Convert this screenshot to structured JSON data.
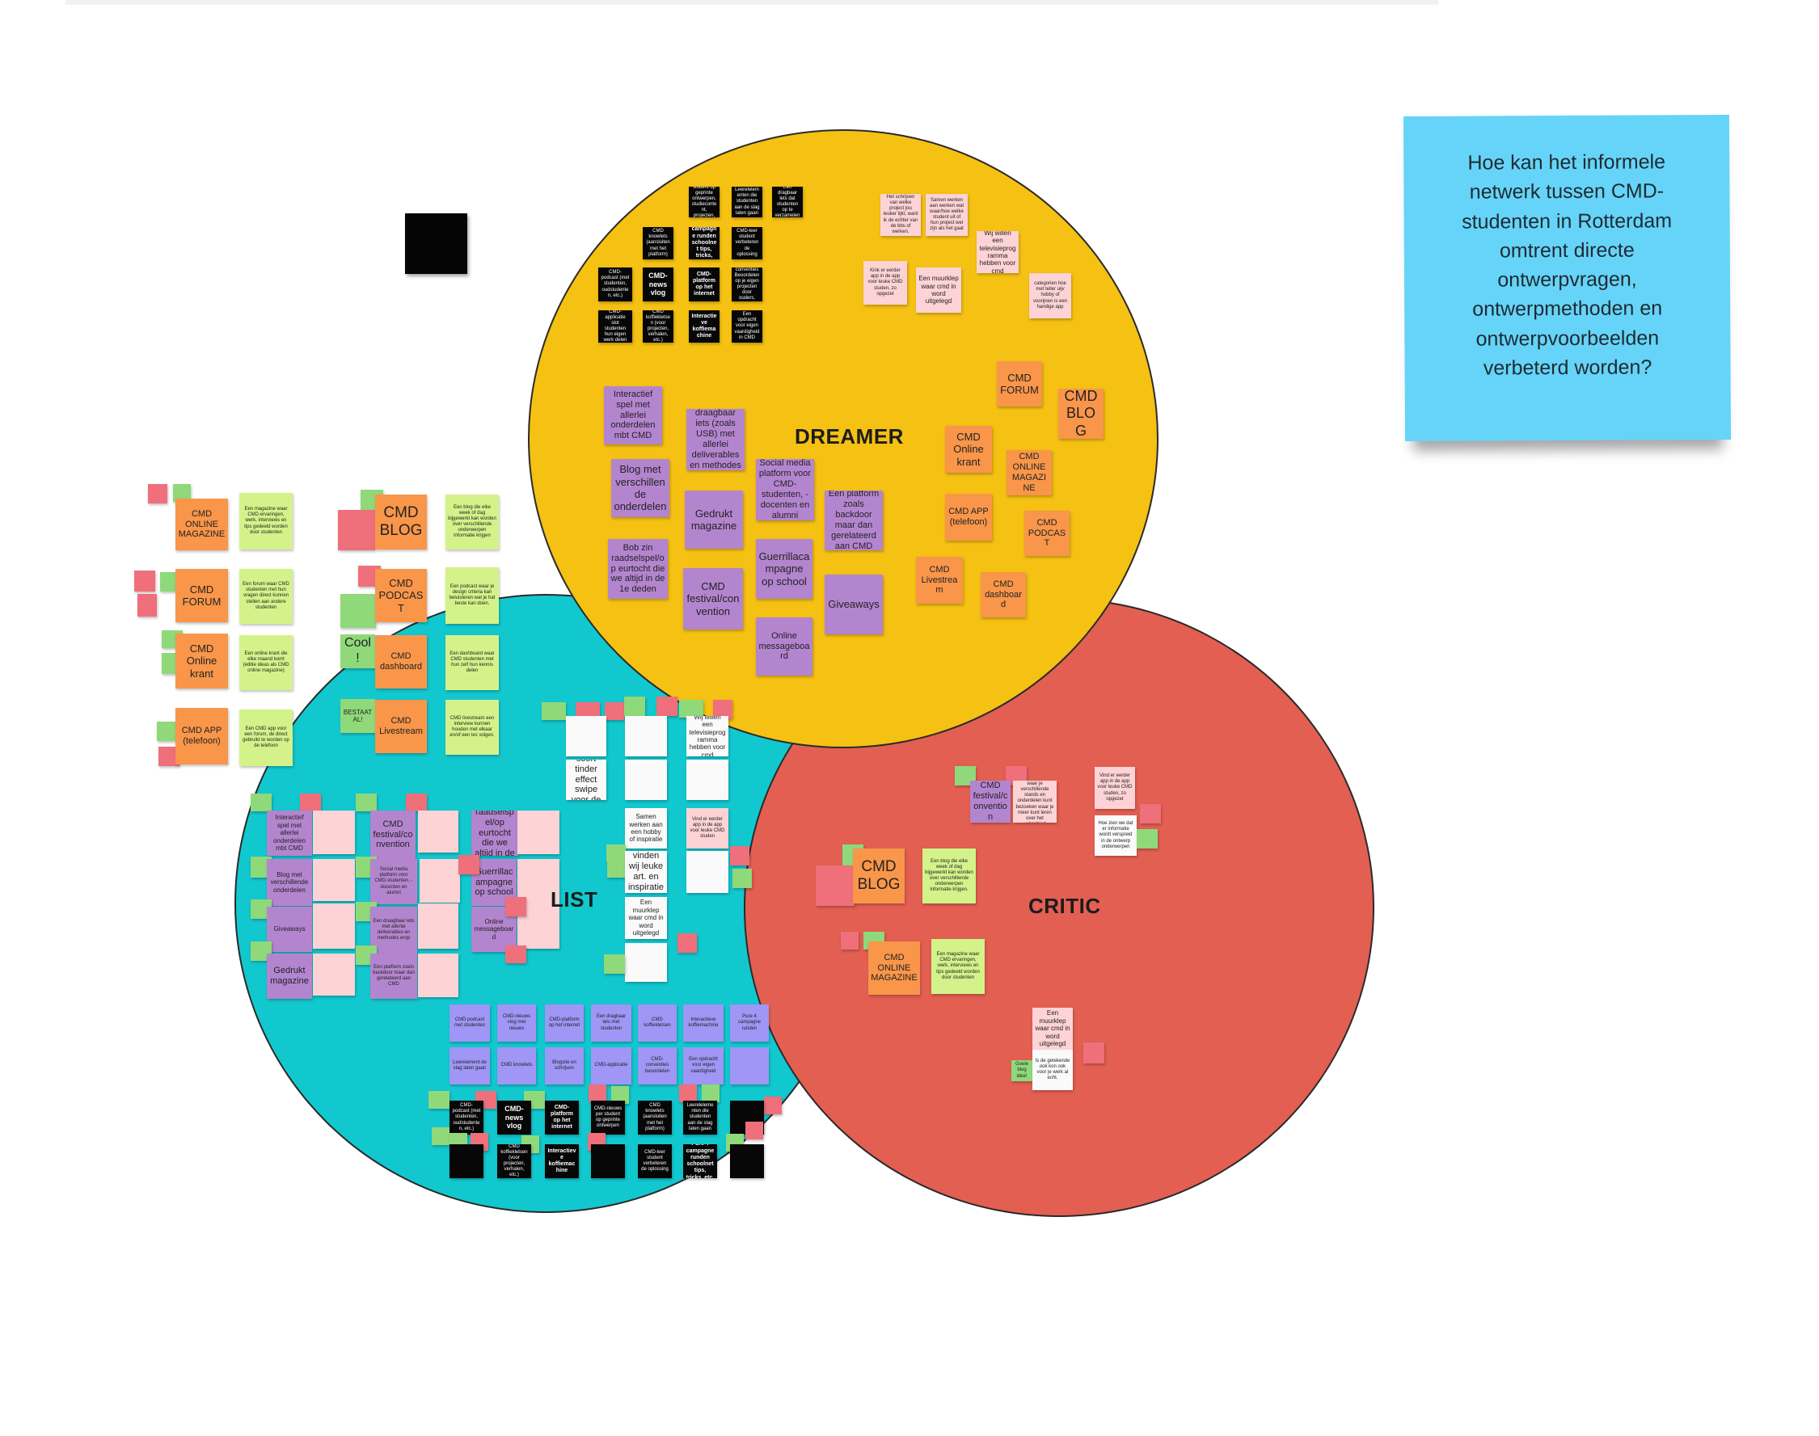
{
  "board": {
    "question": "Hoe kan het informele netwerk tussen CMD-studenten in Rotterdam omtrent directe ontwerpvragen, ontwerpmethoden en ontwerpvoorbeelden verbeterd worden?",
    "labels": {
      "dreamer": "DREAMER",
      "realist": "LIST",
      "critic": "CRITIC"
    }
  },
  "colors": {
    "dreamer": "#f5c112",
    "realist": "#12c8cf",
    "critic": "#e35f52",
    "question": "#65d4f8"
  },
  "dreamer": {
    "black_notes": [
      "CMD-nieuws per student op geprinte ontwerpen, studiecontent, projecten, bedrijven, etc.",
      "Leerelelementen die studenten aan de slag laten gaan",
      "Een dragbaar lets dat studenten op te verzamelen",
      "CMD knowlets (aansluiten met het platform)",
      "Pure 4 campagne runden schoolnet tips, tricks, etc.",
      "CMD-leer student verbeteren de oplossing",
      "CMD-podcast (met studenten, oudstudenten, etc.)",
      "CMD-news vlog",
      "CMD-platform op het internet",
      "CMD-conventies Beoordelen op je eigen projecten door ouders, studenten",
      "CMD-applicatie slot studenten hun eigen werk delen",
      "CMD koffiekletsen (voor projecten, verhalen, etc.)",
      "Interactieve koffiemachine",
      "Een opdracht voor eigen vaardigheid in CMD"
    ],
    "pink_notes": [
      "Het schrijven van welke project jou leuker lijkt, want ik de echter van de bbs of werken.",
      "Samen werken aan werken wat waar/hoe welke student uit of hun project wel zijn als het gaat",
      "Wij willen een televisieprogramma hebben voor cmd",
      "Kink er eerder app in de app voor leuke CMD studen, zo opgezet",
      "Een muurklep waar cmd in word uitgelegd",
      "categorien hoe met teller uijv hobby of voorijnen is een handige app"
    ],
    "purple_notes": [
      "Interactief spel met allerlei onderdelen mbt CMD",
      "Een draagbaar iets (zoals USB) met allerlei deliverables en methodes erop",
      "Social media platform voor CMD-studenten, -docenten en alumni",
      "Blog met verschillende onderdelen",
      "Gedrukt magazine",
      "Een platform zoals backdoor maar dan gerelateerd aan CMD",
      "Bob zin raadselspel/op eurtocht die we altijd in de 1e deden",
      "Guerrillacampagne op school",
      "CMD festival/convention",
      "Giveaways",
      "Online messageboard"
    ],
    "orange_notes": [
      "CMD FORUM",
      "CMD BLOG",
      "CMD Online krant",
      "CMD ONLINE MAGAZINE",
      "CMD APP (telefoon)",
      "CMD PODCAST",
      "CMD Livestream",
      "CMD dashboard"
    ]
  },
  "realist": {
    "orange_notes": [
      "CMD ONLINE MAGAZINE",
      "CMD BLOG",
      "CMD FORUM",
      "CMD PODCAST",
      "CMD Online krant",
      "CMD dashboard",
      "CMD APP (telefoon)",
      "CMD Livestream"
    ],
    "lime_notes": [
      "Een magazine waar CMD ervaringen, werk, interviews en tips gedeeld worden door studenten",
      "Een blog die elke week of dag bijgewerkt kan worden over verschillende onderwerpen informatie krijgen",
      "Een forum waar CMD studenten met hun vragen direct kunnen stellen aan andere studenten",
      "Een podcast waar je design criteria kan beluisteren wat je hat beste kan doen.",
      "Een online krant die elke maand komt (editie ideas als CMD online magazine)",
      "Een dashboard waar CMD studenten met hun zelf hun kennis delen",
      "Een CMD app voor een forum, de direct gebruikt te worden op de telefoon",
      "CMD livestream een interview kunnen houden met elkaar en/of een les volgen."
    ],
    "misc_notes": [
      "Cool!",
      "BESTAAT AL!"
    ],
    "purple_notes": [
      "Interactief spel met allerlei onderdelen mbt CMD",
      "CMD festival/convention",
      "Bob zin raadselspel/op eurtocht die we altijd in de 1e deden",
      "Blog met verschillende onderdelen",
      "Social media platform voor CMD-studenten, -docenten en alumni",
      "Een draagbaar iets (zoals USB) met allerlei deliverables",
      "Guerrillacampagne op school",
      "Giveaways",
      "Een draagbaar iets met allerlei deliverables en methodes erop",
      "Online messageboard",
      "Gedrukt magazine",
      "Een platform zoals backdoor maar dan gerelateerd aan CMD"
    ],
    "white_notes": [
      "Een soort tinder effect swipe voor de beste!",
      "Hoe vinden wij leuke art. en inspiratie?",
      "Een muurklep waar cmd in word uitgelegd",
      "Wij willen een televisieprogramma hebben voor cmd",
      "Samen werken aan een hobby of inspiratie",
      "Vind er eerder app in de app voor leuke CMD studen"
    ],
    "lavender_notes": [
      "CMD podcast met studenten",
      "CMD-nieuws vlog met nieuws",
      "CMD-platform op het internet",
      "Een dragbaar iets met studenten",
      "CMD koffiekletsen",
      "Interactieve koffiemachine",
      "Pure 4 campagne runden",
      "Leerelement de slag laten gaan",
      "CMD knowlets",
      "Blogsite en schrijven",
      "CMD-applicatie",
      "CMD-conventies beoordelen",
      "Een opdracht voor eigen vaardigheid"
    ],
    "black_notes": [
      "CMD-podcast (met studenten, oudstudenten, etc.)",
      "CMD-news vlog",
      "CMD-platform op het internet",
      "CMD koffiekletsen (voor projecten, verhalen, etc.)",
      "Interactieve koffiemachine",
      "CMD-nieuws per student op geprinte ontwerpen",
      "CMD knowlets (aansluiten met het platform)",
      "Pure 4 campagne runden schoolnet tips, tricks, etc.",
      "Leerelelementen die studenten aan de slag laten gaan",
      "CMD-leer student verbeteren de oplossing"
    ]
  },
  "critic": {
    "notes": [
      "CMD festival/convention",
      "Kings dream waar je verschillende stands en onderdelen kunt bezoeken waar je meer kunt leren over het vakgebied",
      "Vind er eerder app in de app voor leuke CMD studen, zo opgezet",
      "Hoe zien we dat er informatie wordt verspreid in de ontwerp onderwerpen",
      "CMD BLOG",
      "Een blog die elke week of dag bijgewerkt kan worden over verschillende onderwerpen informatie krijgen.",
      "CMD ONLINE MAGAZINE",
      "Een magazine waar CMD ervaringen, werk, interviews en tips gedeeld worden door studenten",
      "Een muurklep waar cmd in word uitgelegd",
      "Is de getekende ook kon ook voor je werk al echt.",
      "Goeie blog idee!"
    ]
  }
}
